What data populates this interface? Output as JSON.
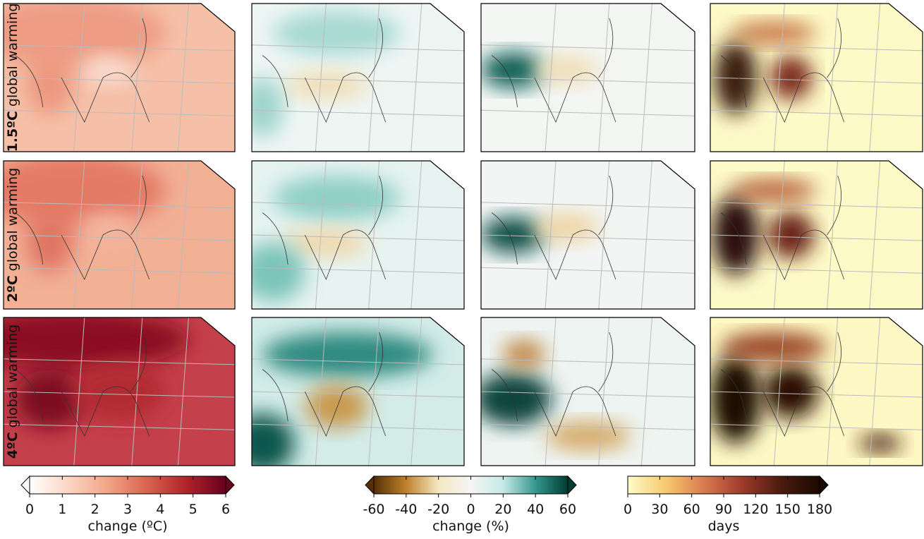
{
  "rows": [
    {
      "bold": "1.5ºC",
      "text": "global warming"
    },
    {
      "bold": "2ºC",
      "text": "global warming"
    },
    {
      "bold": "4ºC",
      "text": "global warming"
    }
  ],
  "colorbars": [
    {
      "lim": [
        0,
        6
      ],
      "ticks": [
        0,
        1,
        2,
        3,
        4,
        5,
        6
      ],
      "label": "change (ºC)",
      "extend": "both",
      "colors": [
        "#ffffff",
        "#fbd5c3",
        "#f2a487",
        "#d8634e",
        "#b0232a",
        "#67001f"
      ]
    },
    {
      "lim": [
        -60,
        60
      ],
      "ticks": [
        -60,
        -40,
        -20,
        0,
        20,
        40,
        60
      ],
      "label": "change (%)",
      "extend": "both",
      "colors": [
        "#543005",
        "#bf812d",
        "#f6e8c3",
        "#f5f5f5",
        "#c7eae5",
        "#35978f",
        "#003c30"
      ]
    },
    {
      "lim": [
        0,
        180
      ],
      "ticks": [
        0,
        30,
        60,
        90,
        120,
        150,
        180
      ],
      "label": "days",
      "extend": "max",
      "colors": [
        "#fffbc8",
        "#f7c96f",
        "#d9794f",
        "#9c3a2b",
        "#4b1a0d",
        "#1a0a02"
      ]
    }
  ]
}
